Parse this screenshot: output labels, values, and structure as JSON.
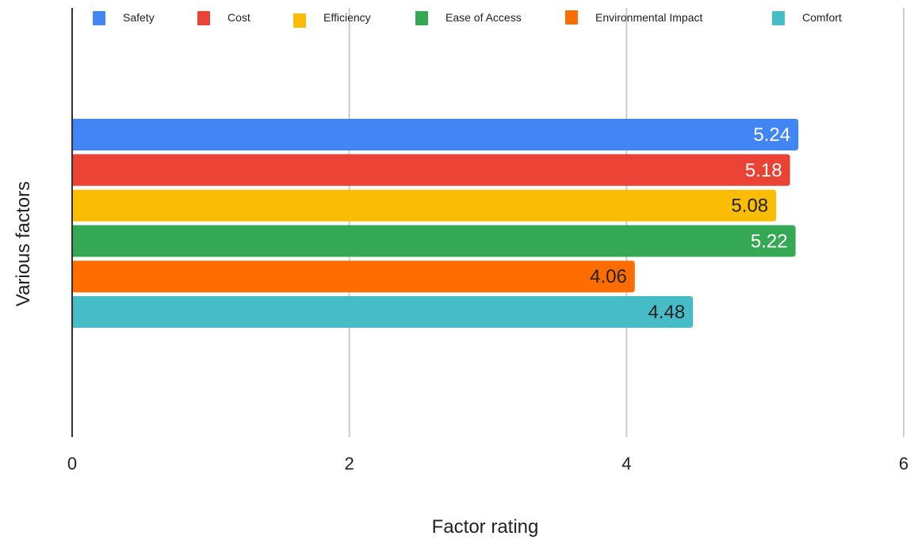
{
  "chart_data": {
    "type": "bar",
    "orientation": "horizontal",
    "xlabel": "Factor rating",
    "ylabel": "Various factors",
    "xlim": [
      0,
      6
    ],
    "x_ticks": [
      "0",
      "2",
      "4",
      "6"
    ],
    "grid": true,
    "legend_position": "top",
    "series": [
      {
        "name": "Safety",
        "value": 5.24,
        "label": "5.24",
        "color": "#4285f4",
        "label_color": "#ffffff"
      },
      {
        "name": "Cost",
        "value": 5.18,
        "label": "5.18",
        "color": "#ea4335",
        "label_color": "#ffffff"
      },
      {
        "name": "Efficiency",
        "value": 5.08,
        "label": "5.08",
        "color": "#fbbc04",
        "label_color": "#222222"
      },
      {
        "name": "Ease of Access",
        "value": 5.22,
        "label": "5.22",
        "color": "#34a853",
        "label_color": "#ffffff"
      },
      {
        "name": "Environmental Impact",
        "value": 4.06,
        "label": "4.06",
        "color": "#ff6d01",
        "label_color": "#222222"
      },
      {
        "name": "Comfort",
        "value": 4.48,
        "label": "4.48",
        "color": "#46bdc6",
        "label_color": "#222222"
      }
    ]
  }
}
